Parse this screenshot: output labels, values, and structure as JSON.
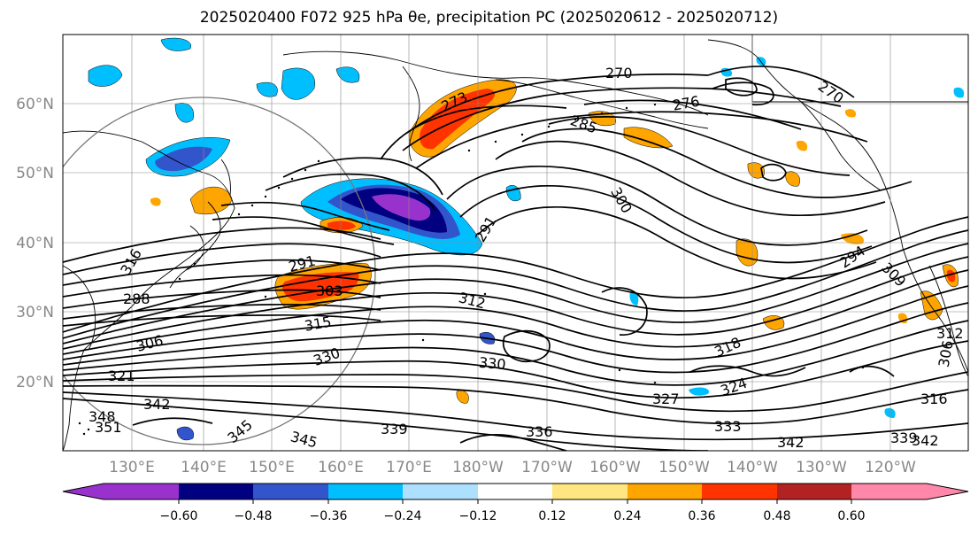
{
  "title": "2025020400 F072 925 hPa θe, precipitation PC (2025020612 - 2025020712)",
  "map": {
    "lat_labels": [
      "60°N",
      "50°N",
      "40°N",
      "30°N",
      "20°N"
    ],
    "lon_labels": [
      "130°E",
      "140°E",
      "150°E",
      "160°E",
      "170°E",
      "180°W",
      "170°W",
      "160°W",
      "150°W",
      "140°W",
      "130°W",
      "120°W"
    ],
    "contour_labels": [
      {
        "text": "270",
        "rot": 0
      },
      {
        "text": "273",
        "rot": -25
      },
      {
        "text": "276",
        "rot": -10
      },
      {
        "text": "270",
        "rot": 35
      },
      {
        "text": "285",
        "rot": 20
      },
      {
        "text": "300",
        "rot": 60
      },
      {
        "text": "291",
        "rot": -60
      },
      {
        "text": "291",
        "rot": -15
      },
      {
        "text": "294",
        "rot": -35
      },
      {
        "text": "303",
        "rot": 0
      },
      {
        "text": "309",
        "rot": 45
      },
      {
        "text": "315",
        "rot": -10
      },
      {
        "text": "312",
        "rot": 15
      },
      {
        "text": "318",
        "rot": -25
      },
      {
        "text": "306",
        "rot": -15
      },
      {
        "text": "306",
        "rot": -80
      },
      {
        "text": "330",
        "rot": -20
      },
      {
        "text": "330",
        "rot": 5
      },
      {
        "text": "321",
        "rot": 0
      },
      {
        "text": "327",
        "rot": 0
      },
      {
        "text": "324",
        "rot": -20
      },
      {
        "text": "342",
        "rot": 0
      },
      {
        "text": "348",
        "rot": 0
      },
      {
        "text": "351",
        "rot": 0
      },
      {
        "text": "345",
        "rot": -40
      },
      {
        "text": "345",
        "rot": 15
      },
      {
        "text": "339",
        "rot": 0
      },
      {
        "text": "336",
        "rot": 0
      },
      {
        "text": "333",
        "rot": 0
      },
      {
        "text": "342",
        "rot": 0
      },
      {
        "text": "339",
        "rot": 0
      },
      {
        "text": "342",
        "rot": 0
      },
      {
        "text": "288",
        "rot": 0
      },
      {
        "text": "316",
        "rot": -60
      },
      {
        "text": "312",
        "rot": 0
      },
      {
        "text": "316",
        "rot": 0
      }
    ]
  },
  "colorbar": {
    "colors": [
      "#9932CC",
      "#000080",
      "#3355CC",
      "#00BFFF",
      "#ADDFFF",
      "#FFFFFF",
      "#FFE680",
      "#FFA500",
      "#FF3300",
      "#B22222",
      "#FF88AA"
    ],
    "tick_labels": [
      "−0.60",
      "−0.48",
      "−0.36",
      "−0.24",
      "−0.12",
      "0.12",
      "0.24",
      "0.36",
      "0.48",
      "0.60"
    ]
  }
}
